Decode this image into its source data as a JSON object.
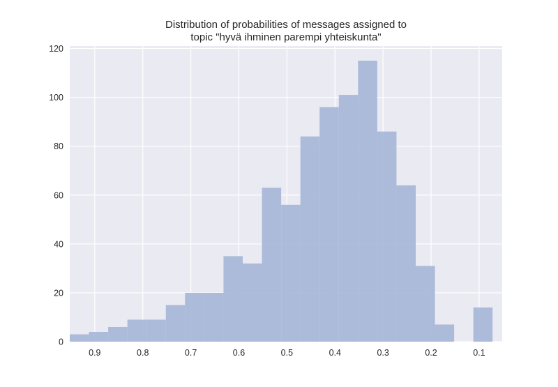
{
  "chart_data": {
    "type": "bar",
    "title": "Distribution of probabilities of messages assigned to",
    "subtitle": "topic \"hyvä ihminen parempi yhteiskunta\"",
    "xlabel": "",
    "ylabel": "",
    "x_axis_reversed": true,
    "xlim": [
      0.952,
      0.052
    ],
    "ylim": [
      0,
      121
    ],
    "xticks": [
      0.9,
      0.8,
      0.7,
      0.6,
      0.5,
      0.4,
      0.3,
      0.2,
      0.1
    ],
    "xtick_labels": [
      "0.9",
      "0.8",
      "0.7",
      "0.6",
      "0.5",
      "0.4",
      "0.3",
      "0.2",
      "0.1"
    ],
    "yticks": [
      0,
      20,
      40,
      60,
      80,
      100,
      120
    ],
    "ytick_labels": [
      "0",
      "20",
      "40",
      "60",
      "80",
      "100",
      "120"
    ],
    "grid": true,
    "bar_color": "#a9b8d8",
    "background_color": "#eaeaf2",
    "bins": [
      {
        "x_start": 0.952,
        "x_end": 0.912,
        "count": 3
      },
      {
        "x_start": 0.912,
        "x_end": 0.872,
        "count": 4
      },
      {
        "x_start": 0.872,
        "x_end": 0.832,
        "count": 6
      },
      {
        "x_start": 0.832,
        "x_end": 0.792,
        "count": 9
      },
      {
        "x_start": 0.792,
        "x_end": 0.752,
        "count": 9
      },
      {
        "x_start": 0.752,
        "x_end": 0.712,
        "count": 15
      },
      {
        "x_start": 0.712,
        "x_end": 0.672,
        "count": 20
      },
      {
        "x_start": 0.672,
        "x_end": 0.632,
        "count": 20
      },
      {
        "x_start": 0.632,
        "x_end": 0.592,
        "count": 35
      },
      {
        "x_start": 0.592,
        "x_end": 0.552,
        "count": 32
      },
      {
        "x_start": 0.552,
        "x_end": 0.512,
        "count": 63
      },
      {
        "x_start": 0.512,
        "x_end": 0.472,
        "count": 56
      },
      {
        "x_start": 0.472,
        "x_end": 0.432,
        "count": 84
      },
      {
        "x_start": 0.432,
        "x_end": 0.392,
        "count": 96
      },
      {
        "x_start": 0.392,
        "x_end": 0.352,
        "count": 101
      },
      {
        "x_start": 0.352,
        "x_end": 0.312,
        "count": 115
      },
      {
        "x_start": 0.312,
        "x_end": 0.272,
        "count": 86
      },
      {
        "x_start": 0.272,
        "x_end": 0.232,
        "count": 64
      },
      {
        "x_start": 0.232,
        "x_end": 0.192,
        "count": 31
      },
      {
        "x_start": 0.192,
        "x_end": 0.152,
        "count": 7
      },
      {
        "x_start": 0.152,
        "x_end": 0.112,
        "count": 0
      },
      {
        "x_start": 0.112,
        "x_end": 0.072,
        "count": 14
      }
    ]
  }
}
